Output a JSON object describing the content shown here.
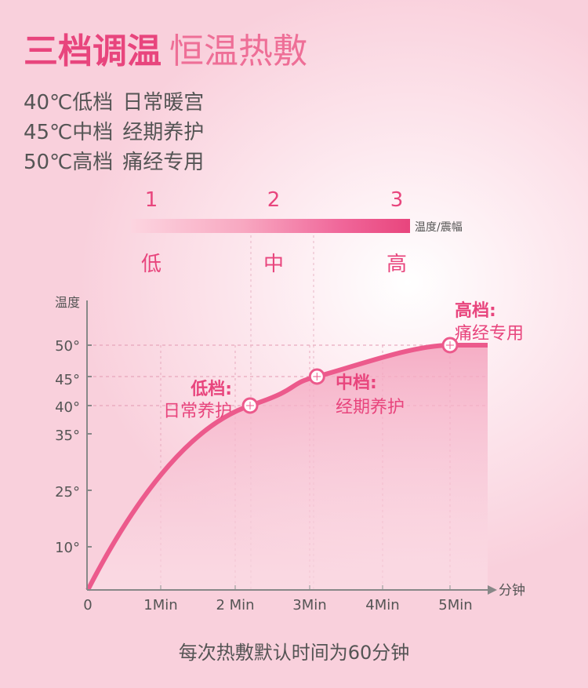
{
  "header": {
    "title_main": "三档调温",
    "title_sub": "恒温热敷"
  },
  "modes": [
    {
      "temp": "40℃低档",
      "desc": "日常暖宫"
    },
    {
      "temp": "45℃中档",
      "desc": "经期养护"
    },
    {
      "temp": "50℃高档",
      "desc": "痛经专用"
    }
  ],
  "scale": {
    "numbers": [
      "1",
      "2",
      "3"
    ],
    "levels": [
      "低",
      "中",
      "高"
    ],
    "bar_label": "温度/震幅"
  },
  "chart_data": {
    "type": "area",
    "ylabel": "温度",
    "xlabel": "分钟",
    "x_ticks": [
      "0",
      "1Min",
      "2 Min",
      "3Min",
      "4Min",
      "5Min"
    ],
    "y_ticks": [
      "50°",
      "45°",
      "40°",
      "35°",
      "25°",
      "10°"
    ],
    "markers": [
      {
        "x": 2.2,
        "y": 40,
        "name": "低档:",
        "desc": "日常养护"
      },
      {
        "x": 3.1,
        "y": 45,
        "name": "中档:",
        "desc": "经期养护"
      },
      {
        "x": 5.0,
        "y": 50,
        "name": "高档:",
        "desc": "痛经专用"
      }
    ],
    "colors": {
      "line": "#ec5a8c",
      "text": "#e8457d"
    }
  },
  "footer": {
    "caption": "每次热敷默认时间为60分钟"
  }
}
